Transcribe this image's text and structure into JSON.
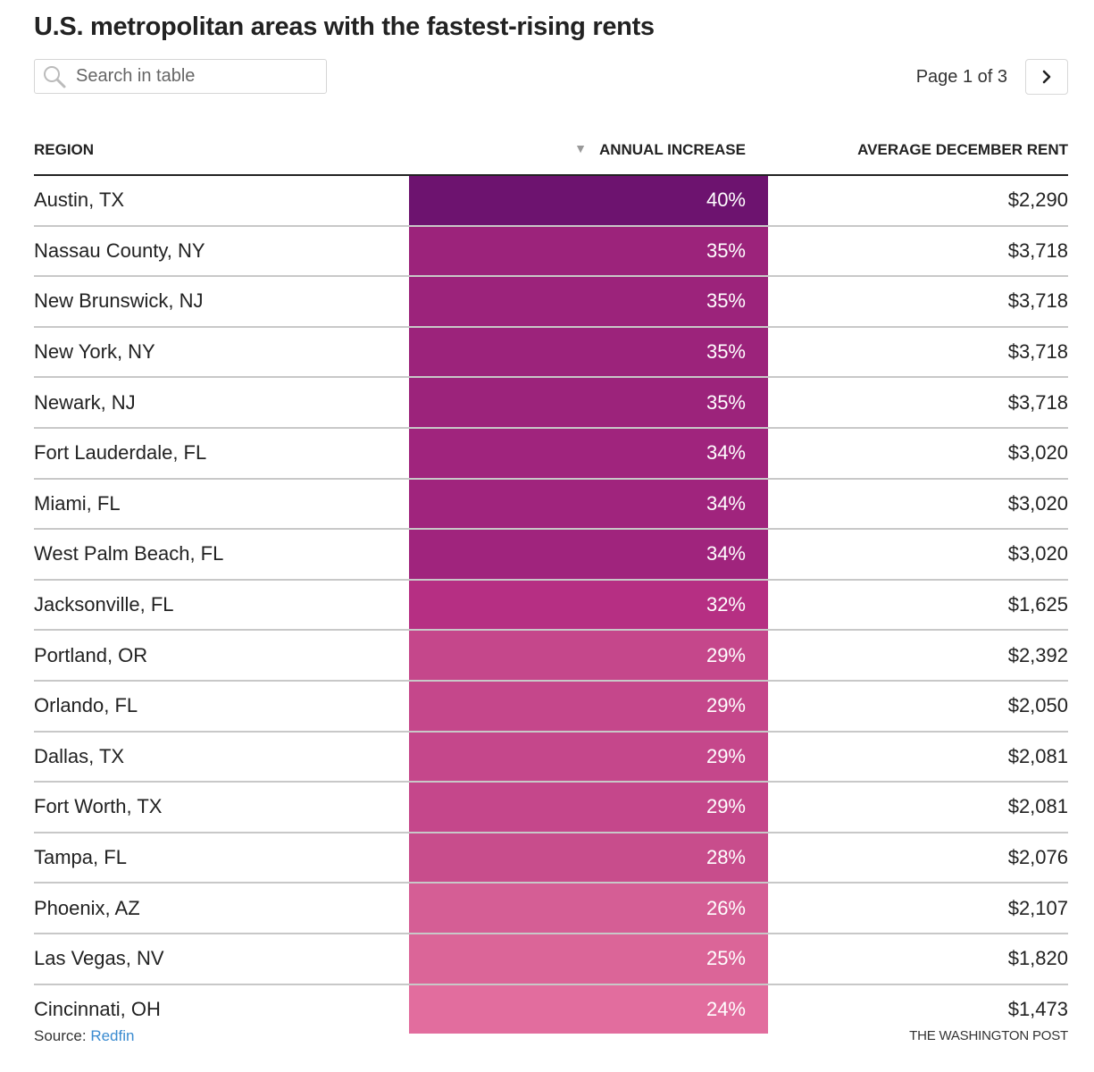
{
  "title": "U.S. metropolitan areas with the fastest-rising rents",
  "search": {
    "placeholder": "Search in table",
    "value": ""
  },
  "pagination": {
    "text": "Page 1 of 3",
    "current_page": 1,
    "total_pages": 3,
    "next_icon": "chevron-right-icon"
  },
  "table": {
    "columns": [
      "REGION",
      "ANNUAL INCREASE",
      "AVERAGE DECEMBER RENT"
    ],
    "sorted_column": "ANNUAL INCREASE",
    "sort_direction": "descending",
    "color_scale": {
      "high": "#6b1370",
      "low": "#e36d9e"
    },
    "rows": [
      {
        "region": "Austin, TX",
        "increase": "40%",
        "rent": "$2,290",
        "color": "#6d136f"
      },
      {
        "region": "Nassau County, NY",
        "increase": "35%",
        "rent": "$3,718",
        "color": "#9c237b"
      },
      {
        "region": "New Brunswick, NJ",
        "increase": "35%",
        "rent": "$3,718",
        "color": "#9c237b"
      },
      {
        "region": "New York, NY",
        "increase": "35%",
        "rent": "$3,718",
        "color": "#9c237b"
      },
      {
        "region": "Newark, NJ",
        "increase": "35%",
        "rent": "$3,718",
        "color": "#9c237b"
      },
      {
        "region": "Fort Lauderdale, FL",
        "increase": "34%",
        "rent": "$3,020",
        "color": "#a0247d"
      },
      {
        "region": "Miami, FL",
        "increase": "34%",
        "rent": "$3,020",
        "color": "#a0247d"
      },
      {
        "region": "West Palm Beach, FL",
        "increase": "34%",
        "rent": "$3,020",
        "color": "#a0247d"
      },
      {
        "region": "Jacksonville, FL",
        "increase": "32%",
        "rent": "$1,625",
        "color": "#b62f83"
      },
      {
        "region": "Portland, OR",
        "increase": "29%",
        "rent": "$2,392",
        "color": "#c5478b"
      },
      {
        "region": "Orlando, FL",
        "increase": "29%",
        "rent": "$2,050",
        "color": "#c5478b"
      },
      {
        "region": "Dallas, TX",
        "increase": "29%",
        "rent": "$2,081",
        "color": "#c5478b"
      },
      {
        "region": "Fort Worth, TX",
        "increase": "29%",
        "rent": "$2,081",
        "color": "#c5478b"
      },
      {
        "region": "Tampa, FL",
        "increase": "28%",
        "rent": "$2,076",
        "color": "#c84d8c"
      },
      {
        "region": "Phoenix, AZ",
        "increase": "26%",
        "rent": "$2,107",
        "color": "#d55e95"
      },
      {
        "region": "Las Vegas, NV",
        "increase": "25%",
        "rent": "$1,820",
        "color": "#db6598"
      },
      {
        "region": "Cincinnati, OH",
        "increase": "24%",
        "rent": "$1,473",
        "color": "#e26d9e"
      }
    ]
  },
  "footer": {
    "source_label": "Source: ",
    "source_link": "Redfin",
    "credit": "THE WASHINGTON POST"
  },
  "chart_data": {
    "type": "table",
    "title": "U.S. metropolitan areas with the fastest-rising rents",
    "columns": [
      "Region",
      "Annual increase (%)",
      "Average December rent ($)"
    ],
    "categories": [
      "Austin, TX",
      "Nassau County, NY",
      "New Brunswick, NJ",
      "New York, NY",
      "Newark, NJ",
      "Fort Lauderdale, FL",
      "Miami, FL",
      "West Palm Beach, FL",
      "Jacksonville, FL",
      "Portland, OR",
      "Orlando, FL",
      "Dallas, TX",
      "Fort Worth, TX",
      "Tampa, FL",
      "Phoenix, AZ",
      "Las Vegas, NV",
      "Cincinnati, OH"
    ],
    "series": [
      {
        "name": "Annual increase",
        "values": [
          40,
          35,
          35,
          35,
          35,
          34,
          34,
          34,
          32,
          29,
          29,
          29,
          29,
          28,
          26,
          25,
          24
        ]
      },
      {
        "name": "Average December rent",
        "values": [
          2290,
          3718,
          3718,
          3718,
          3718,
          3020,
          3020,
          3020,
          1625,
          2392,
          2050,
          2081,
          2081,
          2076,
          2107,
          1820,
          1473
        ]
      }
    ],
    "source": "Redfin",
    "page": "1 of 3"
  }
}
